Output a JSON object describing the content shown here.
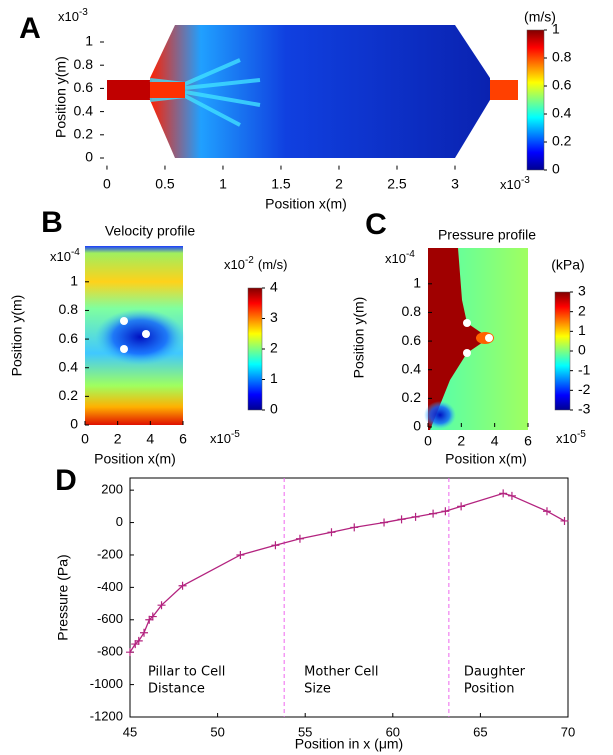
{
  "chart_data": [
    {
      "type": "heatmap",
      "panel_label": "A",
      "xlabel": "Position x(m)",
      "ylabel": "Position y(m)",
      "x_exponent": {
        "base": "x10",
        "exponent": "-3"
      },
      "y_exponent": {
        "base": "x10",
        "exponent": "-3"
      },
      "xlim": [
        -0.06,
        3.6
      ],
      "ylim": [
        -0.1,
        1.15
      ],
      "xticks": [
        0,
        0.5,
        1,
        1.5,
        2,
        2.5,
        3
      ],
      "yticks": [
        0,
        0.2,
        0.4,
        0.6,
        0.8,
        1
      ],
      "colorbar": {
        "title": "(m/s)",
        "lim": [
          0,
          1
        ],
        "ticks": [
          0,
          0.2,
          0.4,
          0.6,
          0.8,
          1
        ]
      }
    },
    {
      "type": "heatmap",
      "panel_label": "B",
      "title": "Velocity profile",
      "xlabel": "Position x(m)",
      "ylabel": "Position y(m)",
      "x_exponent": {
        "base": "x10",
        "exponent": "-5"
      },
      "y_exponent": {
        "base": "x10",
        "exponent": "-4"
      },
      "xlim": [
        0,
        6
      ],
      "ylim": [
        0,
        1.25
      ],
      "xticks": [
        0,
        2,
        4,
        6
      ],
      "yticks": [
        0,
        0.2,
        0.4,
        0.6,
        0.8,
        1
      ],
      "colorbar": {
        "title": "(m/s)",
        "exponent": {
          "base": "x10",
          "exponent": "-2"
        },
        "lim": [
          0,
          4
        ],
        "ticks": [
          0,
          1,
          2,
          3,
          4
        ]
      }
    },
    {
      "type": "heatmap",
      "panel_label": "C",
      "title": "Pressure profile",
      "xlabel": "Position x(m)",
      "ylabel": "Position y(m)",
      "x_exponent": {
        "base": "x10",
        "exponent": "-5"
      },
      "y_exponent": {
        "base": "x10",
        "exponent": "-4"
      },
      "xlim": [
        0,
        6
      ],
      "ylim": [
        0,
        1.25
      ],
      "xticks": [
        0,
        2,
        4,
        6
      ],
      "yticks": [
        0,
        0.2,
        0.4,
        0.6,
        0.8,
        1
      ],
      "colorbar": {
        "title": "(kPa)",
        "lim": [
          -3,
          3
        ],
        "ticks": [
          -3,
          -2,
          -1,
          0,
          1,
          2,
          3
        ]
      }
    },
    {
      "type": "line",
      "panel_label": "D",
      "xlabel": "Position in x (μm)",
      "ylabel": "Pressure (Pa)",
      "xlim": [
        45,
        70
      ],
      "ylim": [
        -1200,
        275
      ],
      "xticks": [
        45,
        50,
        55,
        60,
        65,
        70
      ],
      "yticks": [
        -1200,
        -1000,
        -800,
        -600,
        -400,
        -200,
        0,
        200
      ],
      "vlines": [
        53.8,
        63.2
      ],
      "vline_color": "#ee66ee",
      "annotations": [
        [
          "Pillar to Cell",
          "Distance"
        ],
        [
          "Mother Cell",
          "Size"
        ],
        [
          "Daughter",
          "Position"
        ]
      ],
      "series": [
        {
          "color": "#b3237f",
          "x": [
            45,
            45.3,
            45.5,
            45.8,
            46.1,
            46.3,
            46.8,
            48,
            51.3,
            53.3,
            54.7,
            56.5,
            57.8,
            59.5,
            60.5,
            61.3,
            62.3,
            63,
            63.9,
            66.3,
            66.8,
            68.8,
            69.8
          ],
          "values": [
            -800,
            -750,
            -730,
            -680,
            -600,
            -580,
            -510,
            -390,
            -200,
            -140,
            -100,
            -60,
            -30,
            0,
            20,
            35,
            55,
            70,
            100,
            180,
            165,
            70,
            10
          ]
        }
      ]
    }
  ]
}
